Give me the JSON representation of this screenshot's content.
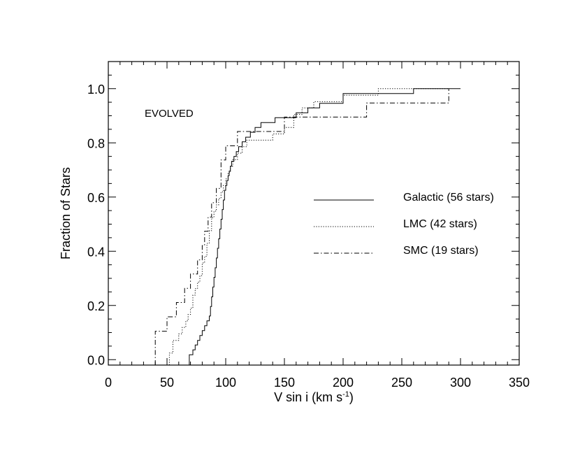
{
  "chart_data": {
    "type": "line",
    "step": true,
    "title": "",
    "annotation": "EVOLVED",
    "xlabel": "V sin i (km s",
    "xlabel_sup": "-1",
    "xlabel_end": ")",
    "ylabel": "Fraction of Stars",
    "xlim": [
      0,
      350
    ],
    "ylim": [
      -0.02,
      1.1
    ],
    "xticks": [
      0,
      50,
      100,
      150,
      200,
      250,
      300,
      350
    ],
    "xtick_labels": [
      "0",
      "50",
      "100",
      "150",
      "200",
      "250",
      "300",
      "350"
    ],
    "yticks": [
      0.0,
      0.2,
      0.4,
      0.6,
      0.8,
      1.0
    ],
    "ytick_labels": [
      "0.0",
      "0.2",
      "0.4",
      "0.6",
      "0.8",
      "1.0"
    ],
    "legend": {
      "position": "right"
    },
    "series": [
      {
        "name": "Galactic (56 stars)",
        "style": "solid",
        "x": [
          69,
          72,
          74,
          76,
          78,
          80,
          82,
          84,
          86,
          87,
          88,
          89,
          90,
          91,
          92,
          93,
          94,
          95,
          96,
          97,
          98,
          99,
          100,
          101,
          102,
          103,
          104,
          105,
          107,
          109,
          111,
          114,
          117,
          121,
          125,
          130,
          136,
          142,
          150,
          160,
          170,
          180,
          200,
          260,
          300
        ],
        "y": [
          0.018,
          0.036,
          0.054,
          0.071,
          0.089,
          0.107,
          0.125,
          0.143,
          0.161,
          0.196,
          0.232,
          0.268,
          0.304,
          0.339,
          0.375,
          0.411,
          0.446,
          0.482,
          0.518,
          0.554,
          0.589,
          0.625,
          0.643,
          0.661,
          0.679,
          0.696,
          0.714,
          0.732,
          0.75,
          0.768,
          0.786,
          0.804,
          0.821,
          0.839,
          0.857,
          0.875,
          0.875,
          0.893,
          0.893,
          0.911,
          0.929,
          0.946,
          0.982,
          1.0,
          1.0
        ]
      },
      {
        "name": "LMC (42 stars)",
        "style": "dotted",
        "x": [
          52,
          55,
          60,
          63,
          66,
          68,
          70,
          72,
          74,
          76,
          78,
          80,
          82,
          84,
          86,
          88,
          90,
          92,
          94,
          96,
          98,
          100,
          102,
          104,
          106,
          110,
          114,
          118,
          122,
          130,
          140,
          150,
          158,
          165,
          175,
          185,
          200,
          230,
          290
        ],
        "y": [
          0.024,
          0.071,
          0.095,
          0.119,
          0.143,
          0.167,
          0.19,
          0.238,
          0.262,
          0.286,
          0.31,
          0.357,
          0.381,
          0.429,
          0.476,
          0.524,
          0.548,
          0.571,
          0.595,
          0.619,
          0.643,
          0.667,
          0.69,
          0.714,
          0.738,
          0.762,
          0.786,
          0.81,
          0.81,
          0.81,
          0.833,
          0.857,
          0.905,
          0.929,
          0.952,
          0.952,
          0.976,
          1.0,
          1.0
        ]
      },
      {
        "name": "SMC (19 stars)",
        "style": "dashdot",
        "x": [
          40,
          50,
          58,
          65,
          70,
          76,
          80,
          82,
          85,
          88,
          92,
          96,
          100,
          110,
          140,
          150,
          175,
          220,
          290
        ],
        "y": [
          0.105,
          0.158,
          0.211,
          0.263,
          0.316,
          0.368,
          0.421,
          0.474,
          0.526,
          0.579,
          0.632,
          0.737,
          0.789,
          0.842,
          0.842,
          0.895,
          0.895,
          0.947,
          1.0
        ]
      }
    ]
  }
}
